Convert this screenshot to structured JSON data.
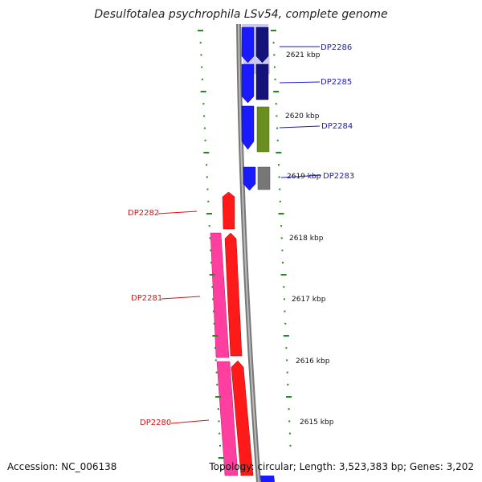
{
  "title": "Desulfotalea psychrophila LSv54, complete genome",
  "accession": "Accession: NC_006138",
  "topology_info": "Topology: circular; Length: 3,523,383 bp; Genes: 3,202",
  "ticks": [
    "2621 kbp",
    "2620 kbp",
    "2619 kbp",
    "2618 kbp",
    "2617 kbp",
    "2616 kbp",
    "2615 kbp"
  ],
  "genes": [
    {
      "name": "DP2286",
      "strand": "+",
      "label_color": "#1a1acc"
    },
    {
      "name": "DP2285",
      "strand": "+",
      "label_color": "#1a1acc"
    },
    {
      "name": "DP2284",
      "strand": "+",
      "label_color": "#1a1acc"
    },
    {
      "name": "DP2283",
      "strand": "+",
      "label_color": "#1a1acc"
    },
    {
      "name": "DP2282",
      "strand": "-",
      "label_color": "#dd1111"
    },
    {
      "name": "DP2281",
      "strand": "-",
      "label_color": "#dd1111"
    },
    {
      "name": "DP2280",
      "strand": "-",
      "label_color": "#dd1111"
    }
  ],
  "colors": {
    "forward_cds": "#1a1aff",
    "forward_inner_dark": "#13137a",
    "olive_feature": "#6b8e23",
    "gray_feature": "#777777",
    "reverse_cds": "#ff1a1a",
    "reverse_pink": "#ff3fa0",
    "backbone": "#888888",
    "tick_green": "#1e8c1e"
  }
}
